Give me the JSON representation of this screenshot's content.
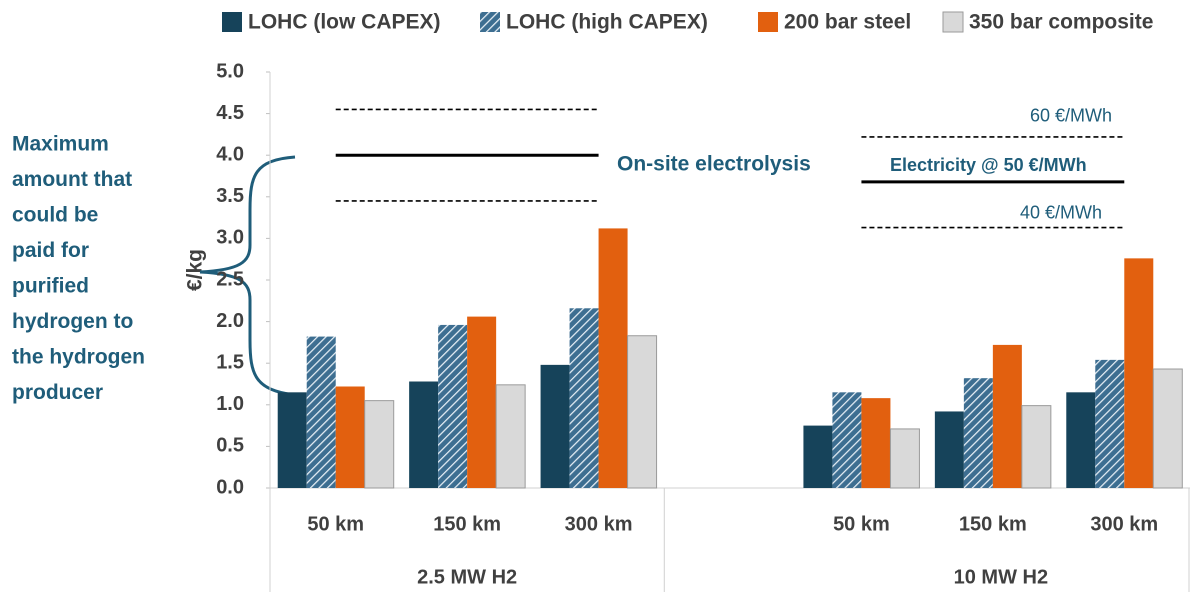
{
  "chart_data": {
    "type": "bar",
    "y_label": "€/kg",
    "categories": [
      "50 km",
      "150 km",
      "300 km",
      null,
      "50 km",
      "150 km",
      "300 km"
    ],
    "groups": [
      "2.5 MW H2",
      "10 MW H2"
    ],
    "series": [
      {
        "name": "LOHC (low CAPEX)",
        "color": "#16435a",
        "values": [
          1.15,
          1.28,
          1.48,
          null,
          0.75,
          0.92,
          1.15
        ]
      },
      {
        "name": "LOHC (high CAPEX)",
        "color": "#3d6e91",
        "hatch": true,
        "values": [
          1.82,
          1.96,
          2.16,
          null,
          1.15,
          1.32,
          1.54
        ]
      },
      {
        "name": "200 bar steel",
        "color": "#e2600f",
        "values": [
          1.22,
          2.06,
          3.12,
          null,
          1.08,
          1.72,
          2.76
        ]
      },
      {
        "name": "350 bar composite",
        "color": "#d9d9d9",
        "values": [
          1.05,
          1.24,
          1.83,
          null,
          0.71,
          0.99,
          1.43
        ]
      }
    ],
    "ylim": [
      0,
      5
    ],
    "yticks": [
      {
        "value": 0,
        "label": "0.0"
      },
      0.5,
      {
        "value": 1,
        "label": "1.0"
      },
      1.5,
      {
        "value": 2,
        "label": "2.0"
      },
      2.5,
      {
        "value": 3,
        "label": "3.0"
      },
      3.5,
      {
        "value": 4,
        "label": "4.0"
      },
      4.5,
      {
        "value": 5,
        "label": "5.0"
      }
    ],
    "reference_lines": [
      {
        "values": [
          4.55,
          4.0,
          3.45
        ],
        "label": "On-site electrolysis"
      },
      {
        "values": [
          4.22,
          3.68,
          3.13
        ],
        "labels": [
          "60 €/MWh",
          "Electricity @ 50 €/MWh",
          "40 €/MWh"
        ]
      }
    ],
    "annotation": [
      "Maximum",
      "amount that",
      "could be",
      "paid for",
      "purified",
      "hydrogen to",
      "the hydrogen",
      "producer"
    ]
  }
}
